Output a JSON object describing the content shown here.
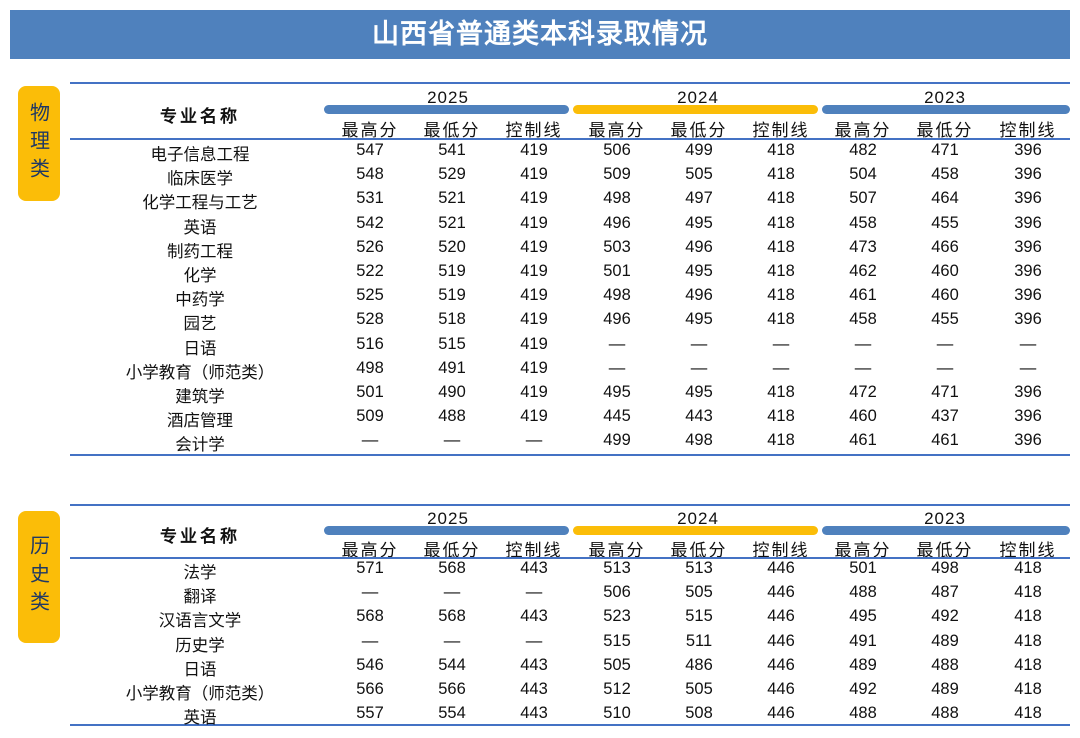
{
  "title": "山西省普通类本科录取情况",
  "years": [
    "2025",
    "2024",
    "2023"
  ],
  "subheaders": [
    "最高分",
    "最低分",
    "控制线"
  ],
  "major_col_label": "专业名称",
  "sections": [
    {
      "category": "物理类",
      "rows": [
        {
          "major": "电子信息工程",
          "scores": [
            "547",
            "541",
            "419",
            "506",
            "499",
            "418",
            "482",
            "471",
            "396"
          ]
        },
        {
          "major": "临床医学",
          "scores": [
            "548",
            "529",
            "419",
            "509",
            "505",
            "418",
            "504",
            "458",
            "396"
          ]
        },
        {
          "major": "化学工程与工艺",
          "scores": [
            "531",
            "521",
            "419",
            "498",
            "497",
            "418",
            "507",
            "464",
            "396"
          ]
        },
        {
          "major": "英语",
          "scores": [
            "542",
            "521",
            "419",
            "496",
            "495",
            "418",
            "458",
            "455",
            "396"
          ]
        },
        {
          "major": "制药工程",
          "scores": [
            "526",
            "520",
            "419",
            "503",
            "496",
            "418",
            "473",
            "466",
            "396"
          ]
        },
        {
          "major": "化学",
          "scores": [
            "522",
            "519",
            "419",
            "501",
            "495",
            "418",
            "462",
            "460",
            "396"
          ]
        },
        {
          "major": "中药学",
          "scores": [
            "525",
            "519",
            "419",
            "498",
            "496",
            "418",
            "461",
            "460",
            "396"
          ]
        },
        {
          "major": "园艺",
          "scores": [
            "528",
            "518",
            "419",
            "496",
            "495",
            "418",
            "458",
            "455",
            "396"
          ]
        },
        {
          "major": "日语",
          "scores": [
            "516",
            "515",
            "419",
            "—",
            "—",
            "—",
            "—",
            "—",
            "—"
          ]
        },
        {
          "major": "小学教育（师范类）",
          "scores": [
            "498",
            "491",
            "419",
            "—",
            "—",
            "—",
            "—",
            "—",
            "—"
          ]
        },
        {
          "major": "建筑学",
          "scores": [
            "501",
            "490",
            "419",
            "495",
            "495",
            "418",
            "472",
            "471",
            "396"
          ]
        },
        {
          "major": "酒店管理",
          "scores": [
            "509",
            "488",
            "419",
            "445",
            "443",
            "418",
            "460",
            "437",
            "396"
          ]
        },
        {
          "major": "会计学",
          "scores": [
            "—",
            "—",
            "—",
            "499",
            "498",
            "418",
            "461",
            "461",
            "396"
          ]
        }
      ]
    },
    {
      "category": "历史类",
      "rows": [
        {
          "major": "法学",
          "scores": [
            "571",
            "568",
            "443",
            "513",
            "513",
            "446",
            "501",
            "498",
            "418"
          ]
        },
        {
          "major": "翻译",
          "scores": [
            "—",
            "—",
            "—",
            "506",
            "505",
            "446",
            "488",
            "487",
            "418"
          ]
        },
        {
          "major": "汉语言文学",
          "scores": [
            "568",
            "568",
            "443",
            "523",
            "515",
            "446",
            "495",
            "492",
            "418"
          ]
        },
        {
          "major": "历史学",
          "scores": [
            "—",
            "—",
            "—",
            "515",
            "511",
            "446",
            "491",
            "489",
            "418"
          ]
        },
        {
          "major": "日语",
          "scores": [
            "546",
            "544",
            "443",
            "505",
            "486",
            "446",
            "489",
            "488",
            "418"
          ]
        },
        {
          "major": "小学教育（师范类）",
          "scores": [
            "566",
            "566",
            "443",
            "512",
            "505",
            "446",
            "492",
            "489",
            "418"
          ]
        },
        {
          "major": "英语",
          "scores": [
            "557",
            "554",
            "443",
            "510",
            "508",
            "446",
            "488",
            "488",
            "418"
          ]
        }
      ]
    }
  ],
  "colors": {
    "banner": "#4f81bd",
    "tag": "#fbbd08",
    "bar_blue": "#4f81bd",
    "bar_gold": "#fbbd08",
    "line": "#4472c4"
  }
}
